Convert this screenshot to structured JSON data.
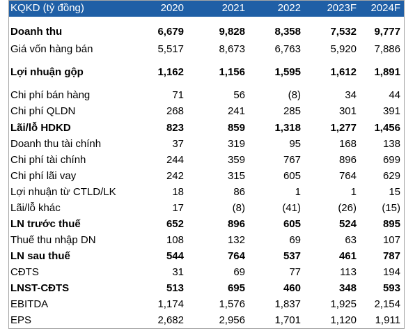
{
  "table": {
    "header": [
      "KQKD (tỷ đồng)",
      "2020",
      "2021",
      "2022",
      "2023F",
      "2024F"
    ],
    "rows": [
      [
        "Doanh thu",
        "6,679",
        "9,828",
        "8,358",
        "7,532",
        "9,777"
      ],
      [
        "Giá vốn hàng bán",
        "5,517",
        "8,673",
        "6,763",
        "5,920",
        "7,886"
      ],
      [
        "Lợi nhuận gộp",
        "1,162",
        "1,156",
        "1,595",
        "1,612",
        "1,891"
      ],
      [
        "Chi phí bán hàng",
        "71",
        "56",
        "(8)",
        "34",
        "44"
      ],
      [
        "Chi phí QLDN",
        "268",
        "241",
        "285",
        "301",
        "391"
      ],
      [
        "Lãi/lỗ HDKD",
        "823",
        "859",
        "1,318",
        "1,277",
        "1,456"
      ],
      [
        "Doanh thu tài chính",
        "37",
        "319",
        "95",
        "168",
        "138"
      ],
      [
        "Chi phí tài chính",
        "244",
        "359",
        "767",
        "896",
        "699"
      ],
      [
        "Chi phí lãi vay",
        "242",
        "315",
        "605",
        "764",
        "629"
      ],
      [
        "Lợi nhuận từ CTLD/LK",
        "18",
        "86",
        "1",
        "1",
        "15"
      ],
      [
        "Lãi/lỗ khác",
        "17",
        "(8)",
        "(41)",
        "(26)",
        "(15)"
      ],
      [
        "LN trước thuế",
        "652",
        "896",
        "605",
        "524",
        "895"
      ],
      [
        "Thuế thu nhập DN",
        "108",
        "132",
        "69",
        "63",
        "107"
      ],
      [
        "LN sau thuế",
        "544",
        "764",
        "537",
        "461",
        "787"
      ],
      [
        "CĐTS",
        "31",
        "69",
        "77",
        "113",
        "194"
      ],
      [
        "LNST-CĐTS",
        "513",
        "695",
        "460",
        "348",
        "593"
      ],
      [
        "EBITDA",
        "1,174",
        "1,576",
        "1,837",
        "1,925",
        "2,154"
      ],
      [
        "EPS",
        "2,682",
        "2,956",
        "1,701",
        "1,120",
        "1,911"
      ]
    ]
  }
}
